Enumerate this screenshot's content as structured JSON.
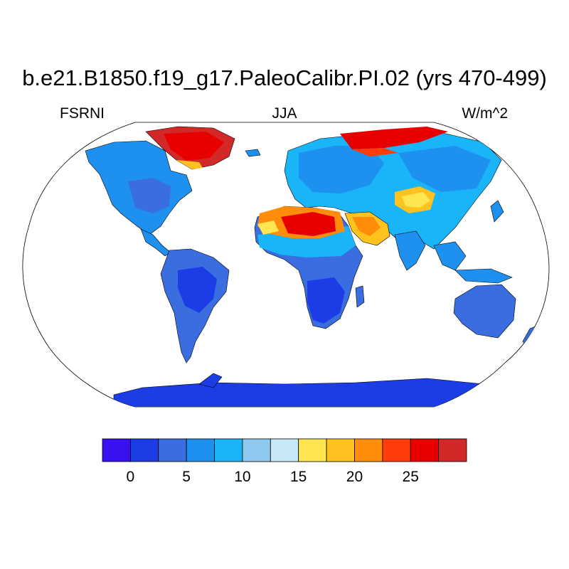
{
  "map": {
    "title": "b.e21.B1850.f19_g17.PaleoCalibr.PI.02 (yrs 470-499)",
    "left_label": "FSRNI",
    "center_label": "JJA",
    "right_label": "W/m^2",
    "projection": "Robinson",
    "field": "FSRNI"
  },
  "colorbar": {
    "colors": [
      "#3a10f0",
      "#1c3ce6",
      "#3a6ee0",
      "#1e90f0",
      "#1ab4f8",
      "#8ec8ee",
      "#c8e8f8",
      "#ffe650",
      "#ffc21e",
      "#ff8c0a",
      "#ff3c0a",
      "#e80000",
      "#d22828"
    ],
    "tick_labels": [
      "0",
      "5",
      "10",
      "15",
      "20",
      "25"
    ],
    "tick_positions": [
      1,
      3,
      5,
      7,
      9,
      11
    ]
  },
  "chart_data": {
    "type": "heatmap",
    "title": "b.e21.B1850.f19_g17.PaleoCalibr.PI.02 (yrs 470-499)",
    "variable": "FSRNI",
    "season": "JJA",
    "units": "W/m^2",
    "levels": [
      -2.5,
      0,
      2.5,
      5,
      7.5,
      10,
      12.5,
      15,
      17.5,
      20,
      22.5,
      25,
      27.5
    ],
    "color_scale": "13 discrete bins from blue (low) to red (high)",
    "regions": [
      {
        "region": "Antarctica",
        "approx_value": 2
      },
      {
        "region": "Greenland",
        "approx_value": 28
      },
      {
        "region": "Arctic Siberia coast",
        "approx_value": 27
      },
      {
        "region": "North America",
        "approx_value": 7
      },
      {
        "region": "South America",
        "approx_value": 4
      },
      {
        "region": "Sahara",
        "approx_value": 25
      },
      {
        "region": "Sahel",
        "approx_value": 12
      },
      {
        "region": "Southern Africa",
        "approx_value": 3
      },
      {
        "region": "Arabian Peninsula",
        "approx_value": 20
      },
      {
        "region": "Central Asia",
        "approx_value": 18
      },
      {
        "region": "Europe and Siberia",
        "approx_value": 10
      },
      {
        "region": "South Asia",
        "approx_value": 9
      },
      {
        "region": "Australia",
        "approx_value": 6
      }
    ]
  }
}
